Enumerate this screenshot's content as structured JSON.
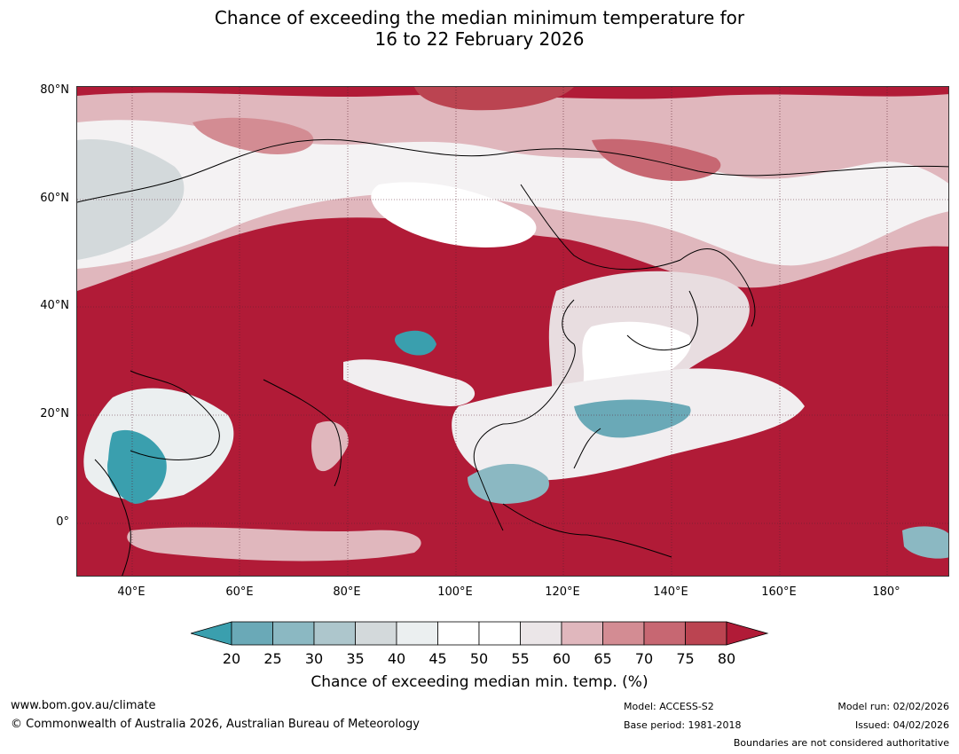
{
  "title_line1": "Chance of exceeding the median minimum temperature for",
  "title_line2": "16 to 22 February 2026",
  "lat_labels": [
    "80°N",
    "60°N",
    "40°N",
    "20°N",
    "0°"
  ],
  "lon_labels": [
    "40°E",
    "60°E",
    "80°E",
    "100°E",
    "120°E",
    "140°E",
    "160°E",
    "180°"
  ],
  "colorbar": {
    "ticks": [
      "20",
      "25",
      "30",
      "35",
      "40",
      "45",
      "50",
      "55",
      "60",
      "65",
      "70",
      "75",
      "80"
    ],
    "colors": [
      "#3a9fae",
      "#6aa9b7",
      "#8bb8c2",
      "#adc6cc",
      "#d3d9db",
      "#ebeff0",
      "#ffffff",
      "#ffffff",
      "#ebe6e8",
      "#e0b7bd",
      "#d38c93",
      "#c76772",
      "#bb4451",
      "#b11b37"
    ],
    "label": "Chance of exceeding median min. temp. (%)"
  },
  "footer": {
    "url": "www.bom.gov.au/climate",
    "copyright": "© Commonwealth of Australia 2026, Australian Bureau of Meteorology",
    "model": "Model: ACCESS-S2",
    "base_period": "Base period: 1981-2018",
    "model_run": "Model run: 02/02/2026",
    "issued": "Issued: 04/02/2026",
    "disclaimer": "Boundaries are not considered authoritative"
  }
}
